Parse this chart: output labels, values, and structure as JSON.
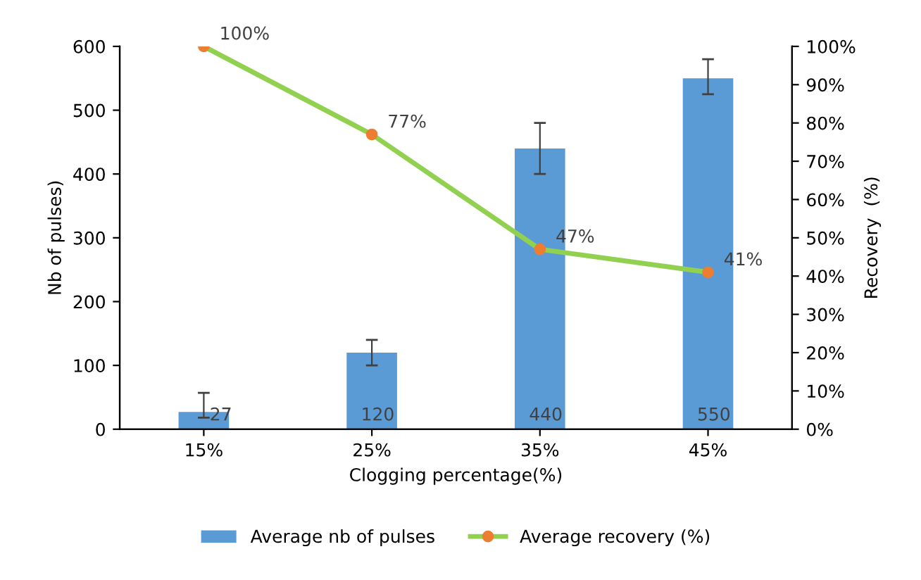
{
  "chart_data": {
    "type": "bar",
    "categories": [
      "15%",
      "25%",
      "35%",
      "45%"
    ],
    "xlabel": "Clogging percentage(%)",
    "ylabel": "Nb of pulses)",
    "y2label": "Recovery  (%)",
    "ylim": [
      0,
      600
    ],
    "yticks": [
      0,
      100,
      200,
      300,
      400,
      500,
      600
    ],
    "y2lim": [
      0,
      100
    ],
    "y2ticks": [
      {
        "value": 0,
        "label": "0%"
      },
      {
        "value": 10,
        "label": "10%"
      },
      {
        "value": 20,
        "label": "20%"
      },
      {
        "value": 30,
        "label": "30%"
      },
      {
        "value": 40,
        "label": "40%"
      },
      {
        "value": 50,
        "label": "50%"
      },
      {
        "value": 60,
        "label": "60%"
      },
      {
        "value": 70,
        "label": "70%"
      },
      {
        "value": 80,
        "label": "80%"
      },
      {
        "value": 90,
        "label": "90%"
      },
      {
        "value": 100,
        "label": "100%"
      }
    ],
    "legend": "bottom",
    "grid": false,
    "series": [
      {
        "name": "Average nb of pulses",
        "color": "#5b9bd5",
        "values": [
          27,
          120,
          440,
          550
        ],
        "errors": [
          [
            18,
            57
          ],
          [
            100,
            140
          ],
          [
            400,
            480
          ],
          [
            525,
            580
          ]
        ],
        "value_labels": [
          "27",
          "120",
          "440",
          "550"
        ]
      },
      {
        "name": "Average recovery (%)",
        "type": "line",
        "axis": "y2",
        "color": "#92d050",
        "marker": "circle",
        "values": [
          100,
          77,
          47,
          41
        ],
        "value_labels": [
          "100%",
          "77%",
          "47%",
          "41%"
        ]
      }
    ]
  }
}
